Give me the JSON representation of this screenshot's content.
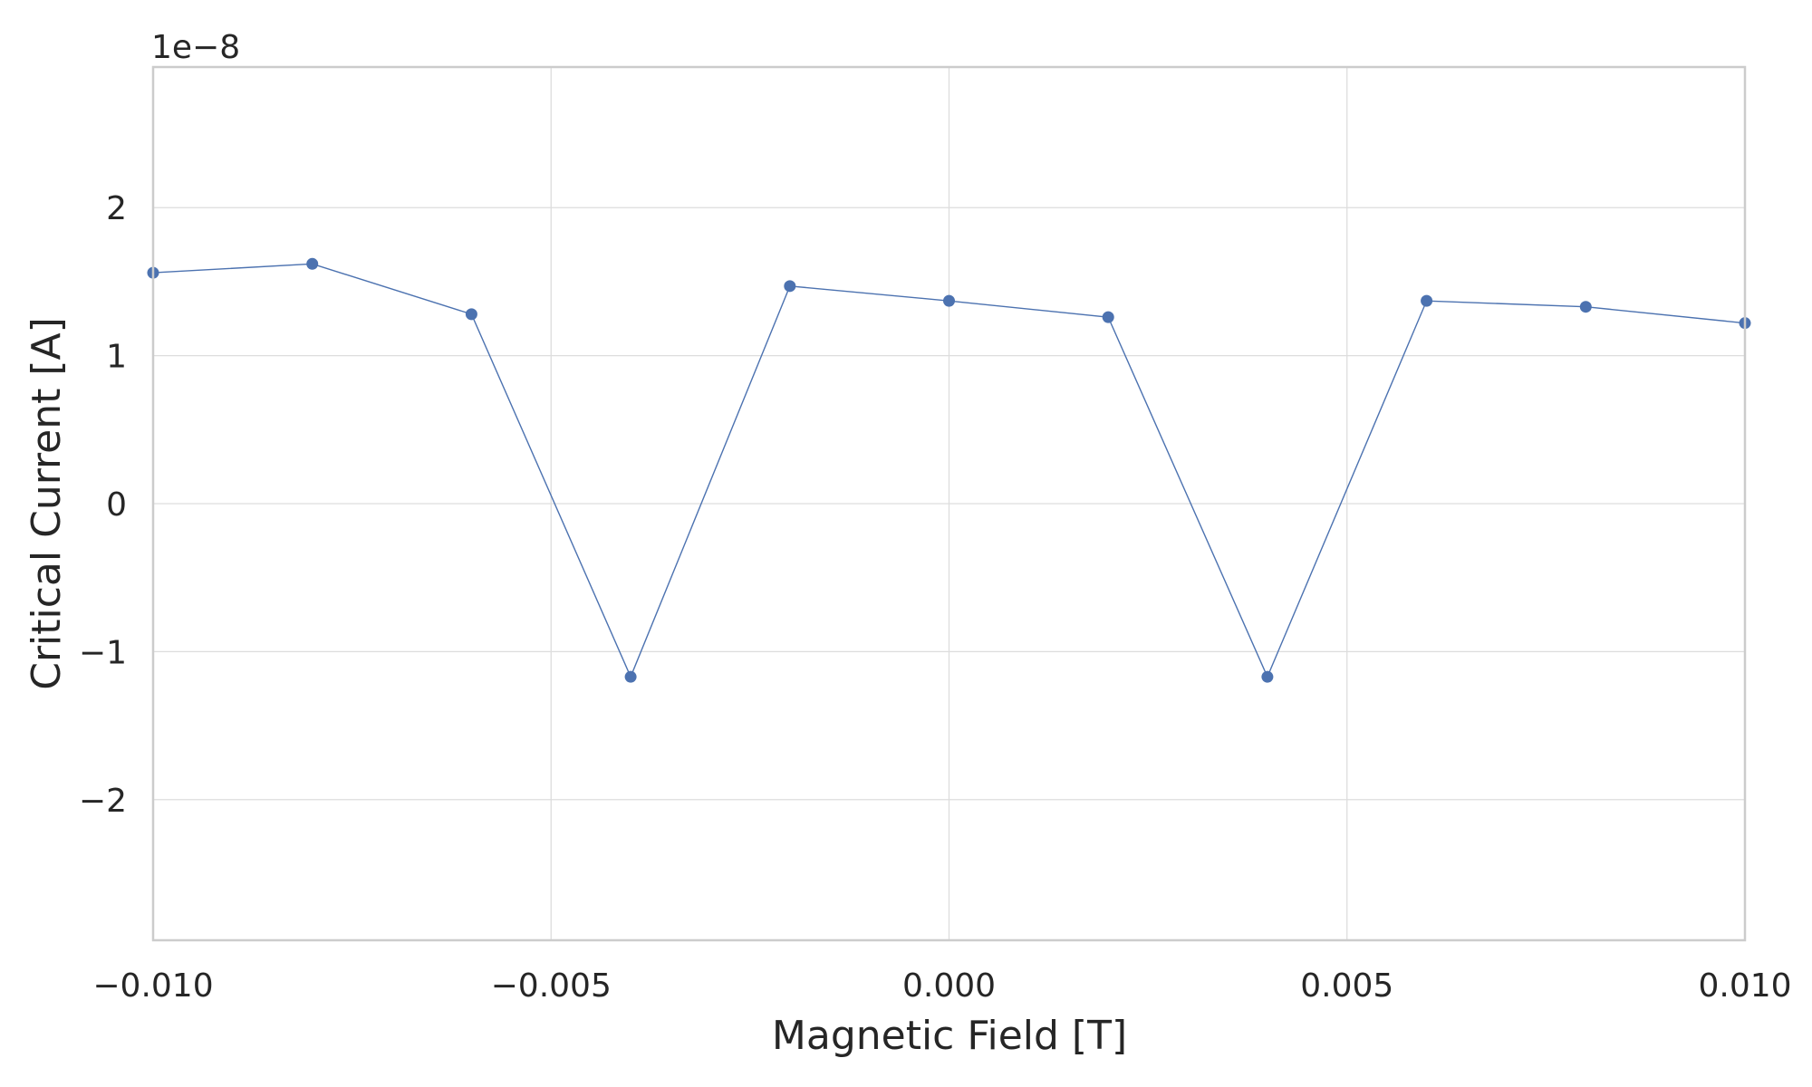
{
  "chart_data": {
    "type": "line",
    "xlabel": "Magnetic Field [T]",
    "ylabel": "Critical Current [A]",
    "y_offset_label": "1e−8",
    "xlim": [
      -0.01,
      0.01
    ],
    "ylim": [
      -2.95,
      2.95
    ],
    "y_scale": 1e-08,
    "x_ticks": [
      -0.01,
      -0.005,
      0.0,
      0.005,
      0.01
    ],
    "x_tick_labels": [
      "−0.010",
      "−0.005",
      "0.000",
      "0.005",
      "0.010"
    ],
    "y_ticks": [
      -2,
      -1,
      0,
      1,
      2
    ],
    "y_tick_labels": [
      "−2",
      "−1",
      "0",
      "1",
      "2"
    ],
    "grid": true,
    "legend": "none",
    "series": [
      {
        "color": "#4c72b0",
        "marker": "circle",
        "x": [
          -0.01,
          -0.008,
          -0.006,
          -0.004,
          -0.002,
          0.0,
          0.002,
          0.004,
          0.006,
          0.008,
          0.01
        ],
        "y": [
          1.56e-08,
          1.62e-08,
          1.28e-08,
          -1.17e-08,
          1.47e-08,
          1.37e-08,
          1.26e-08,
          -1.17e-08,
          1.37e-08,
          1.33e-08,
          1.22e-08
        ]
      }
    ]
  }
}
